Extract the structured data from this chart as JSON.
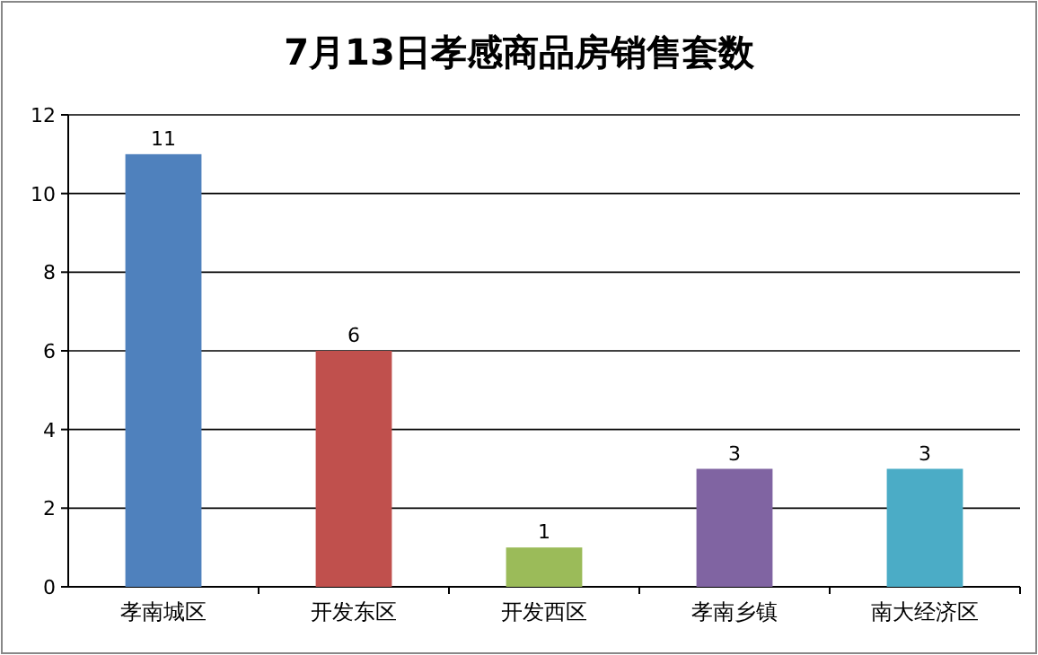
{
  "chart_data": {
    "type": "bar",
    "title": "7月13日孝感商品房销售套数",
    "categories": [
      "孝南城区",
      "开发东区",
      "开发西区",
      "孝南乡镇",
      "南大经济区"
    ],
    "values": [
      11,
      6,
      1,
      3,
      3
    ],
    "colors": [
      "#4f81bd",
      "#c0504d",
      "#9bbb59",
      "#8064a2",
      "#4bacc6"
    ],
    "ylim": [
      0,
      12
    ],
    "yticks": [
      0,
      2,
      4,
      6,
      8,
      10,
      12
    ],
    "grid": "y",
    "data_labels": true
  }
}
